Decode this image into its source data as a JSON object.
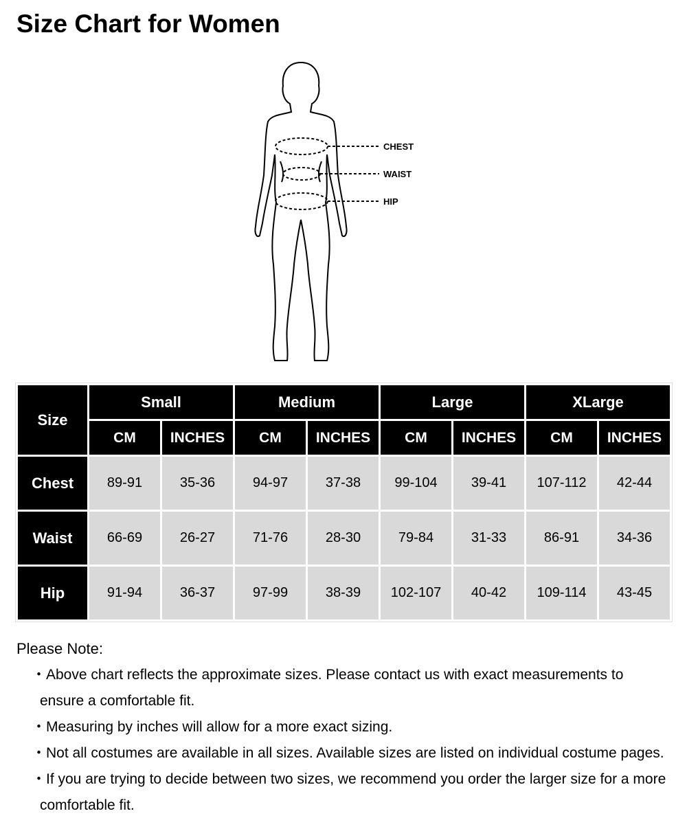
{
  "title": "Size Chart for Women",
  "figure": {
    "labels": [
      "CHEST",
      "WAIST",
      "HIP"
    ]
  },
  "table": {
    "corner": "Size",
    "sizes": [
      "Small",
      "Medium",
      "Large",
      "XLarge"
    ],
    "units": [
      "CM",
      "INCHES"
    ],
    "rows": [
      {
        "label": "Chest",
        "values": [
          "89-91",
          "35-36",
          "94-97",
          "37-38",
          "99-104",
          "39-41",
          "107-112",
          "42-44"
        ]
      },
      {
        "label": "Waist",
        "values": [
          "66-69",
          "26-27",
          "71-76",
          "28-30",
          "79-84",
          "31-33",
          "86-91",
          "34-36"
        ]
      },
      {
        "label": "Hip",
        "values": [
          "91-94",
          "36-37",
          "97-99",
          "38-39",
          "102-107",
          "40-42",
          "109-114",
          "43-45"
        ]
      }
    ]
  },
  "notes": {
    "title": "Please Note:",
    "items": [
      "・Above chart reflects the approximate sizes. Please contact us with exact measurements to ensure a comfortable fit.",
      "・Measuring by inches will allow for a more exact sizing.",
      "・Not all costumes are available in all sizes. Available sizes are listed on individual costume pages.",
      "・If you are trying to decide between two sizes, we recommend you order the larger size for a more comfortable fit."
    ]
  }
}
